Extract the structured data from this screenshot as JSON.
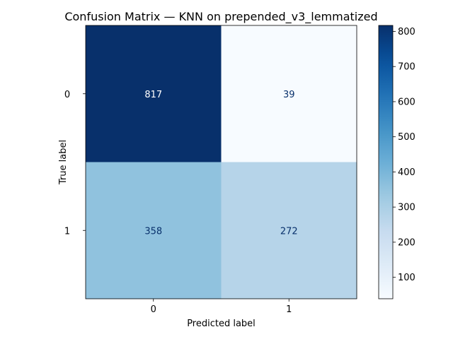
{
  "chart_data": {
    "type": "heatmap",
    "title": "Confusion Matrix — KNN on prepended_v3_lemmatized",
    "xlabel": "Predicted label",
    "ylabel": "True label",
    "x_categories": [
      "0",
      "1"
    ],
    "y_categories": [
      "0",
      "1"
    ],
    "matrix": [
      [
        817,
        39
      ],
      [
        358,
        272
      ]
    ],
    "colormap": "Blues",
    "colorbar": {
      "min": 39,
      "max": 817,
      "ticks": [
        100,
        200,
        300,
        400,
        500,
        600,
        700,
        800
      ]
    },
    "grid": false
  }
}
